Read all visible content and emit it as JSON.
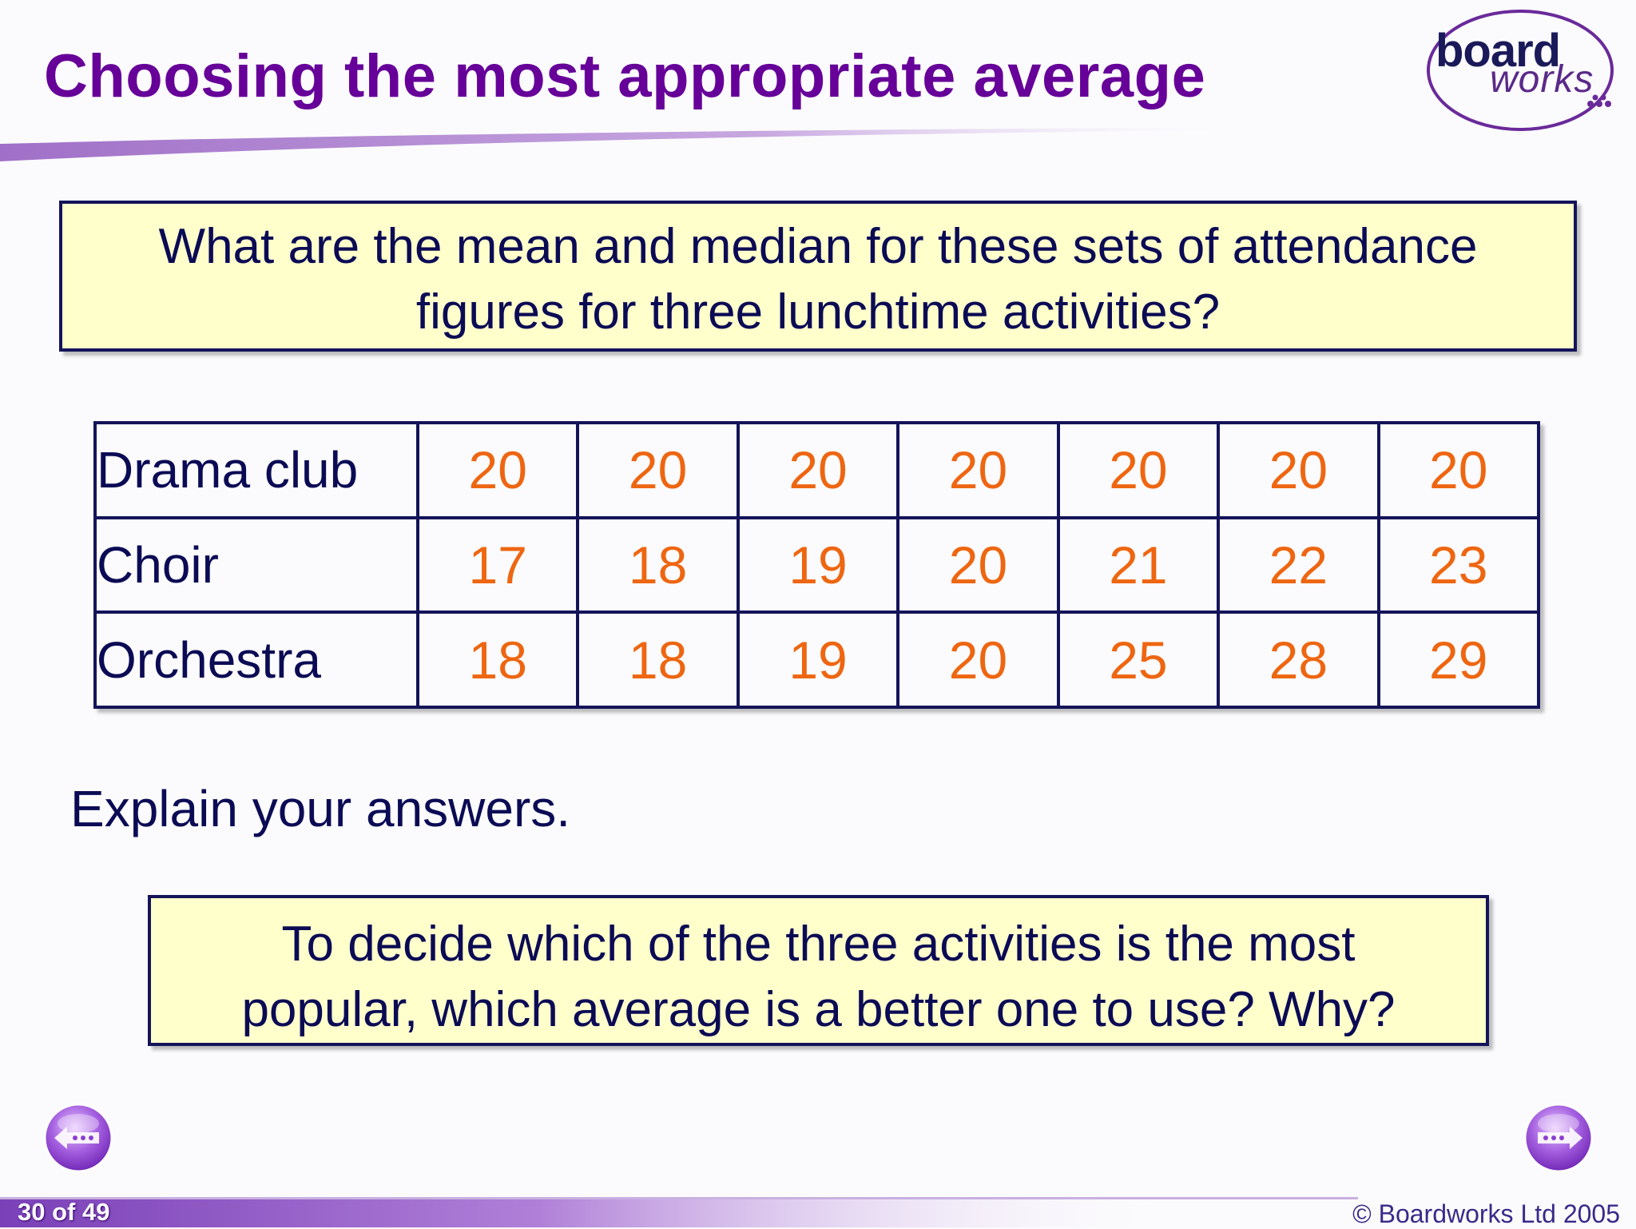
{
  "slide": {
    "title": "Choosing the most appropriate average",
    "question_box": {
      "line1": "What are the mean and median for these sets of attendance",
      "line2": "figures for three lunchtime activities?"
    },
    "table": {
      "rows": [
        {
          "label": "Drama club",
          "values": [
            "20",
            "20",
            "20",
            "20",
            "20",
            "20",
            "20"
          ]
        },
        {
          "label": "Choir",
          "values": [
            "17",
            "18",
            "19",
            "20",
            "21",
            "22",
            "23"
          ]
        },
        {
          "label": "Orchestra",
          "values": [
            "18",
            "18",
            "19",
            "20",
            "25",
            "28",
            "29"
          ]
        }
      ]
    },
    "explain_text": "Explain your answers.",
    "decision_box": {
      "line1": "To decide which of the three activities is the most",
      "line2": "popular, which average is a better one to use? Why?"
    }
  },
  "logo": {
    "word1": "board",
    "word2": "works"
  },
  "footer": {
    "page_indicator": "30 of 49",
    "copyright": "© Boardworks Ltd 2005"
  },
  "colors": {
    "title": "#660099",
    "box_fill": "#ffffcc",
    "border": "#14145a",
    "value_text": "#ee6611",
    "body_text": "#0b0b55"
  },
  "icons": {
    "prev": "back-arrow-icon",
    "next": "forward-arrow-icon"
  }
}
